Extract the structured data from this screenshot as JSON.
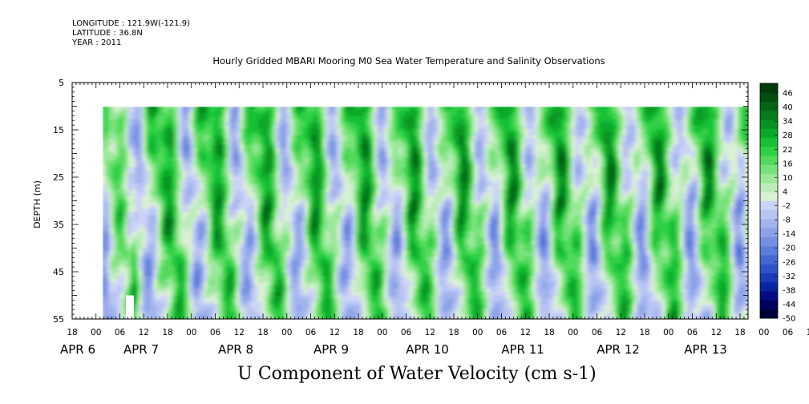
{
  "header": {
    "longitude": "LONGITUDE : 121.9W(-121.9)",
    "latitude": "LATITUDE : 36.8N",
    "year": "YEAR : 2011"
  },
  "chart_data": {
    "type": "heatmap",
    "title": "Hourly Gridded MBARI Mooring M0 Sea Water Temperature and Salinity Observations",
    "xlabel": "U Component of Water Velocity (cm s-1)",
    "ylabel": "DEPTH (m)",
    "y_ticks": [
      5,
      15,
      25,
      35,
      45,
      55
    ],
    "ylim": [
      55,
      5
    ],
    "data_depth_range": [
      10,
      55
    ],
    "x_hour_ticks": [
      "18",
      "00",
      "06",
      "12",
      "18",
      "00",
      "06",
      "12",
      "18",
      "00",
      "06",
      "12",
      "18",
      "00",
      "06",
      "12",
      "18",
      "00",
      "06",
      "12",
      "18",
      "00",
      "06",
      "12",
      "18",
      "00",
      "06",
      "12",
      "18",
      "00",
      "06",
      "12",
      "18",
      "00",
      "06",
      "12",
      "18",
      "00",
      "06",
      "12",
      "18"
    ],
    "x_day_labels": [
      "APR 6",
      "APR 7",
      "APR 8",
      "APR 9",
      "APR 10",
      "APR 11",
      "APR 12",
      "APR 13"
    ],
    "colorbar": {
      "labels": [
        "46",
        "40",
        "34",
        "28",
        "22",
        "16",
        "10",
        "4",
        "-2",
        "-8",
        "-14",
        "-20",
        "-26",
        "-32",
        "-38",
        "-44",
        "-50"
      ],
      "min": -50,
      "max": 49,
      "colors": [
        "#00003a",
        "#000060",
        "#000c80",
        "#0a23a0",
        "#1a3ab8",
        "#2e52c8",
        "#4668d4",
        "#5d7ddc",
        "#7590e2",
        "#8ca2e8",
        "#a2b4ee",
        "#b8c4f2",
        "#ccd4f6",
        "#d8f0d4",
        "#bcecb8",
        "#9ae89a",
        "#78e27a",
        "#52da5c",
        "#2ed044",
        "#16c034",
        "#0aa82a",
        "#089222",
        "#067a1c",
        "#066416",
        "#044e10",
        "#023a0a"
      ]
    },
    "colors": {
      "negative": "#7b8ee6",
      "positive": "#3ed65a",
      "missing": "#ffffff"
    }
  }
}
